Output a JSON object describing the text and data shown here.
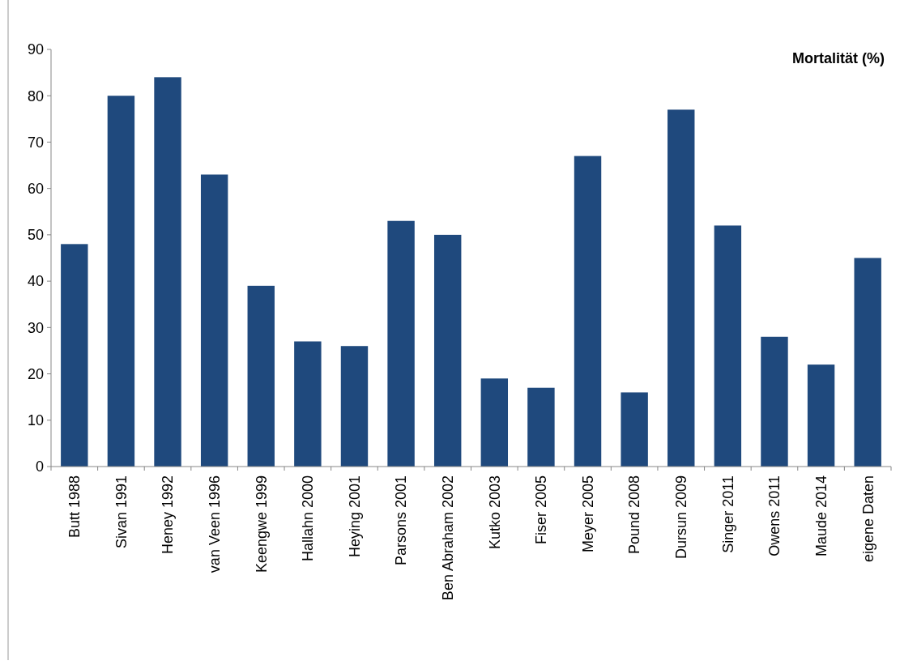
{
  "chart_data": {
    "type": "bar",
    "title": "Mortalität (%)",
    "categories": [
      "Butt 1988",
      "Sivan 1991",
      "Heney 1992",
      "van Veen 1996",
      "Keengwe 1999",
      "Hallahn 2000",
      "Heying 2001",
      "Parsons 2001",
      "Ben Abraham 2002",
      "Kutko 2003",
      "Fiser 2005",
      "Meyer 2005",
      "Pound 2008",
      "Dursun 2009",
      "Singer 2011",
      "Owens 2011",
      "Maude 2014",
      "eigene Daten"
    ],
    "values": [
      48,
      80,
      84,
      63,
      39,
      27,
      26,
      53,
      50,
      19,
      17,
      67,
      16,
      77,
      52,
      28,
      22,
      45
    ],
    "color": "#1f497d",
    "ylim": [
      0,
      90
    ],
    "yticks": [
      0,
      10,
      20,
      30,
      40,
      50,
      60,
      70,
      80,
      90
    ],
    "grid": false
  }
}
